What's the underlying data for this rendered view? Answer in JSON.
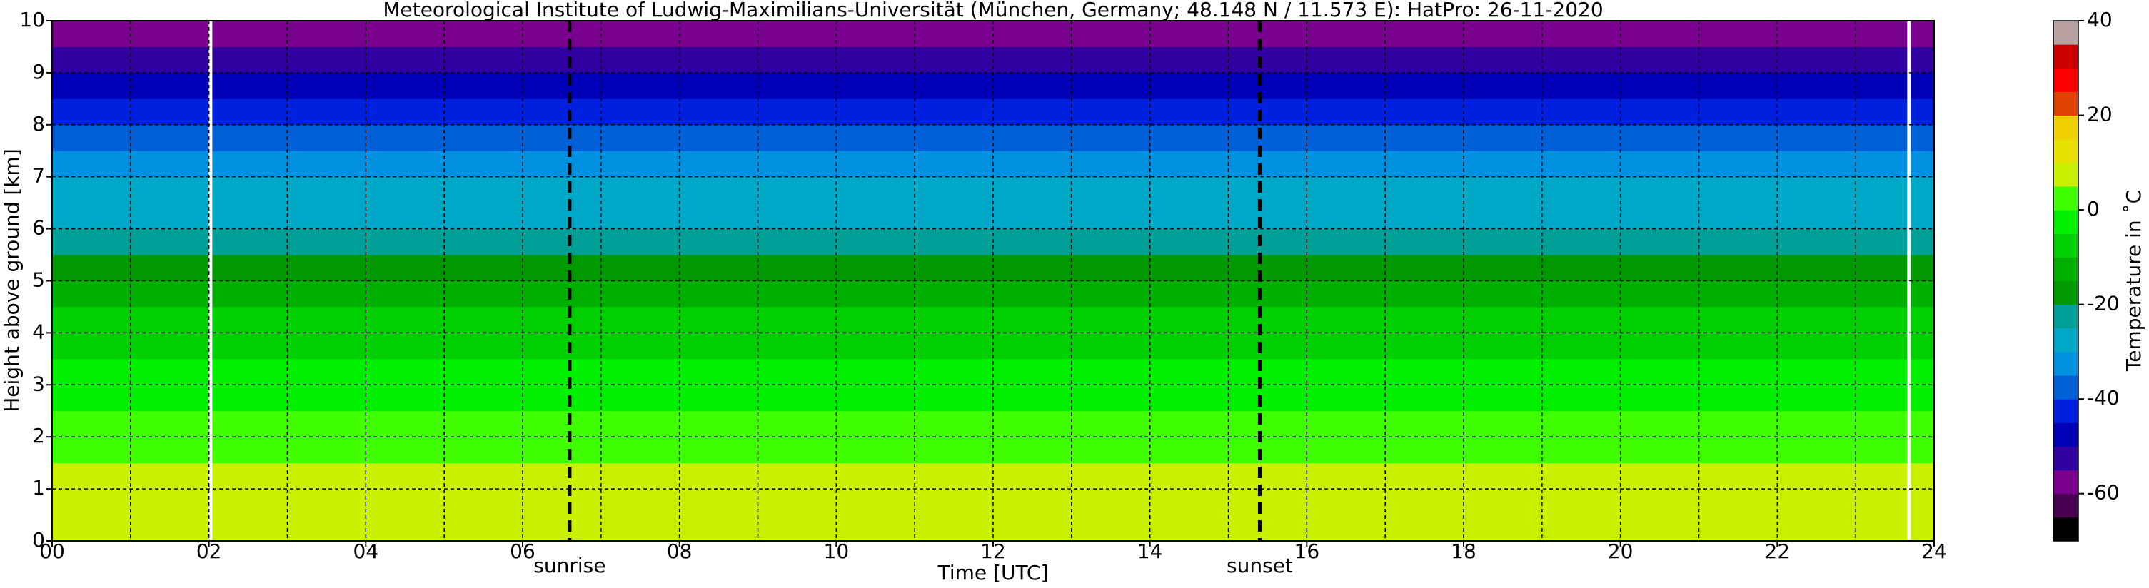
{
  "chart_data": {
    "type": "heatmap",
    "title": "Meteorological Institute of Ludwig-Maximilians-Universität (München, Germany; 48.148 N / 11.573 E):    HatPro: 26-11-2020",
    "xlabel": "Time [UTC]",
    "ylabel": "Height above ground [km]",
    "xlim": [
      0,
      24
    ],
    "xticks": [
      {
        "value": 0,
        "label": "00"
      },
      {
        "value": 2,
        "label": "02"
      },
      {
        "value": 4,
        "label": "04"
      },
      {
        "value": 6,
        "label": "06"
      },
      {
        "value": 8,
        "label": "08"
      },
      {
        "value": 10,
        "label": "10"
      },
      {
        "value": 12,
        "label": "12"
      },
      {
        "value": 14,
        "label": "14"
      },
      {
        "value": 16,
        "label": "16"
      },
      {
        "value": 18,
        "label": "18"
      },
      {
        "value": 20,
        "label": "20"
      },
      {
        "value": 22,
        "label": "22"
      },
      {
        "value": 24,
        "label": "24"
      }
    ],
    "xminorticks": [
      1,
      3,
      5,
      7,
      9,
      11,
      13,
      15,
      17,
      19,
      21,
      23
    ],
    "ylim": [
      0,
      10
    ],
    "yticks": [
      0,
      1,
      2,
      3,
      4,
      5,
      6,
      7,
      8,
      9,
      10
    ],
    "grid": true,
    "height_bins": [
      0,
      0.5,
      1,
      1.5,
      2,
      2.5,
      3,
      3.5,
      4,
      4.5,
      5,
      5.5,
      6,
      6.5,
      7,
      7.5,
      8,
      8.5,
      9,
      9.5,
      10
    ],
    "temperatures": [
      7,
      6,
      5,
      3,
      1,
      -1,
      -4,
      -7,
      -10,
      -14,
      -18,
      -21,
      -26,
      -30,
      -34,
      -38,
      -43,
      -48,
      -52,
      -57
    ],
    "gaps": [
      2.02,
      23.68
    ],
    "annotations": [
      {
        "x": 6.6,
        "label": "sunrise"
      },
      {
        "x": 15.4,
        "label": "sunset"
      }
    ],
    "colorbar": {
      "label": "Temperature in ˚C",
      "lim": [
        -70,
        40
      ],
      "ticks": [
        -60,
        -40,
        -20,
        0,
        20,
        40
      ],
      "levels": [
        -70,
        -65,
        -60,
        -55,
        -50,
        -45,
        -40,
        -35,
        -30,
        -25,
        -20,
        -15,
        -10,
        -5,
        0,
        5,
        10,
        15,
        20,
        25,
        30,
        35,
        40
      ],
      "colors": [
        "#000000",
        "#4a0050",
        "#7a0090",
        "#3000a0",
        "#0000b8",
        "#0020e0",
        "#0060d8",
        "#0090e0",
        "#00a8c8",
        "#00a098",
        "#009a00",
        "#00b000",
        "#00d000",
        "#00f000",
        "#40ff00",
        "#c8f000",
        "#e8e000",
        "#f0d000",
        "#e04000",
        "#ff0000",
        "#cc0000",
        "#b8a0a0"
      ]
    }
  }
}
